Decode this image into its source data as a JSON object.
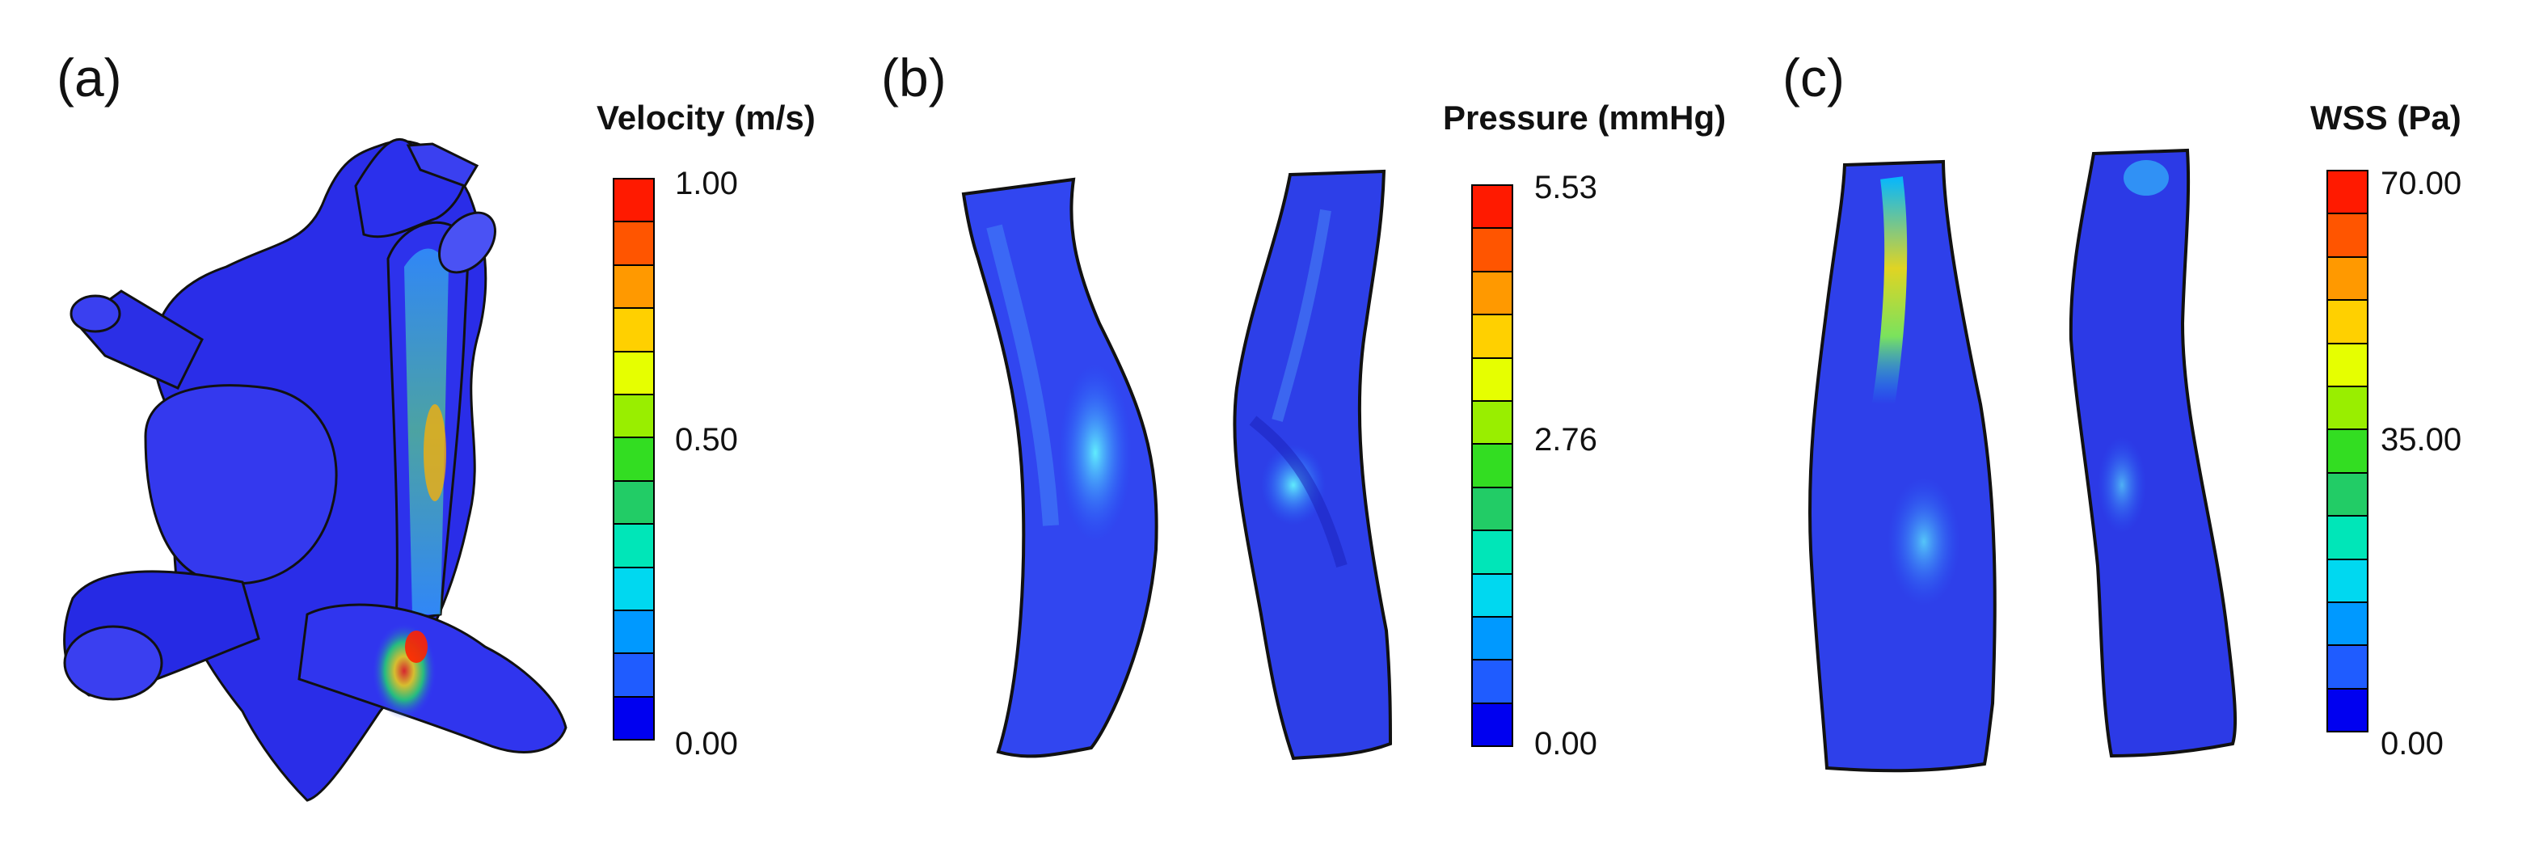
{
  "panels": [
    {
      "label": "(a)",
      "colorbar": {
        "title": "Velocity (m/s)",
        "max": "1.00",
        "mid": "0.50",
        "min": "0.00"
      }
    },
    {
      "label": "(b)",
      "colorbar": {
        "title": "Pressure (mmHg)",
        "max": "5.53",
        "mid": "2.76",
        "min": "0.00"
      }
    },
    {
      "label": "(c)",
      "colorbar": {
        "title": "WSS (Pa)",
        "max": "70.00",
        "mid": "35.00",
        "min": "0.00"
      }
    }
  ],
  "colormap": [
    "#ff1a00",
    "#ff5500",
    "#ff9900",
    "#ffd000",
    "#e6ff00",
    "#99ee00",
    "#33dd22",
    "#22cc66",
    "#00e6b8",
    "#00d8f0",
    "#0099ff",
    "#1f5cff",
    "#0000f0"
  ]
}
